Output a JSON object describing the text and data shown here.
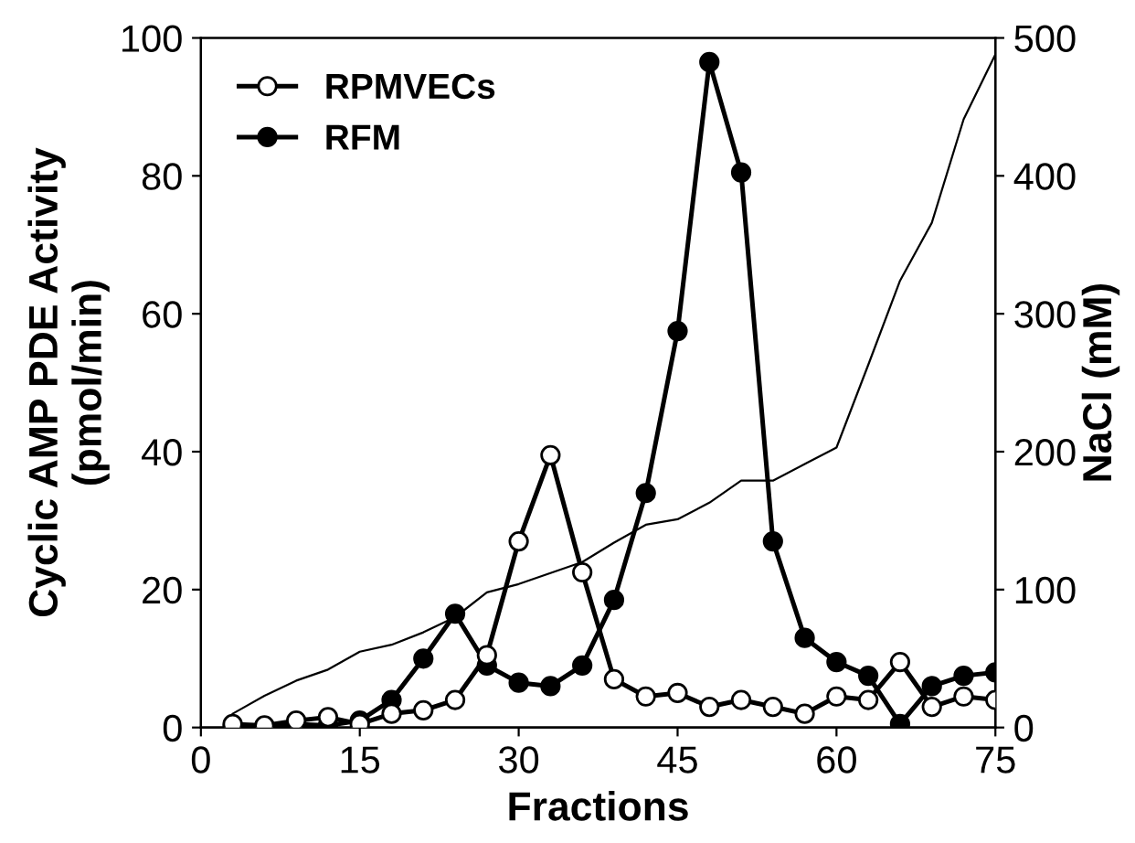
{
  "chart_data": {
    "type": "line",
    "xlabel": "Fractions",
    "ylabel": "Cyclic AMP PDE Activity\n(pmol/min)",
    "y2label": "NaCl (mM)",
    "x": [
      3,
      6,
      9,
      12,
      15,
      18,
      21,
      24,
      27,
      30,
      33,
      36,
      39,
      42,
      45,
      48,
      51,
      54,
      57,
      60,
      63,
      66,
      69,
      72,
      75
    ],
    "series": [
      {
        "name": "RPMVECs",
        "color": "#ffffff",
        "marker": "circle",
        "values": [
          0.5,
          0.3,
          1,
          1.5,
          0.5,
          2,
          2.5,
          4,
          10.5,
          27,
          39.5,
          22.5,
          7,
          4.5,
          5,
          3,
          4,
          3,
          2,
          4.5,
          4,
          9.5,
          3,
          4.5,
          4
        ]
      },
      {
        "name": "RFM",
        "color": "#000000",
        "marker": "circle",
        "values": [
          0.2,
          0.2,
          0.5,
          0.3,
          1,
          4,
          10,
          16.5,
          9,
          6.5,
          6,
          9,
          18.5,
          34,
          57.5,
          96.5,
          80.5,
          27,
          13,
          9.5,
          7.5,
          0.5,
          6,
          7.5,
          8
        ]
      },
      {
        "color": "#000000",
        "axis": "y2",
        "marker": "none",
        "values": [
          10,
          23,
          34,
          42,
          55,
          60,
          69,
          80,
          98,
          104,
          112,
          120,
          134,
          147,
          151,
          163,
          179,
          179,
          191,
          203,
          263,
          324,
          366,
          441,
          488
        ]
      }
    ],
    "xlim": [
      0,
      75
    ],
    "xticks": [
      0,
      15,
      30,
      45,
      60,
      75
    ],
    "ylim": [
      0,
      100
    ],
    "yticks": [
      0,
      20,
      40,
      60,
      80,
      100
    ],
    "y2lim": [
      0,
      500
    ],
    "y2ticks": [
      0,
      100,
      200,
      300,
      400,
      500
    ],
    "grid": false,
    "legend": "top left"
  }
}
